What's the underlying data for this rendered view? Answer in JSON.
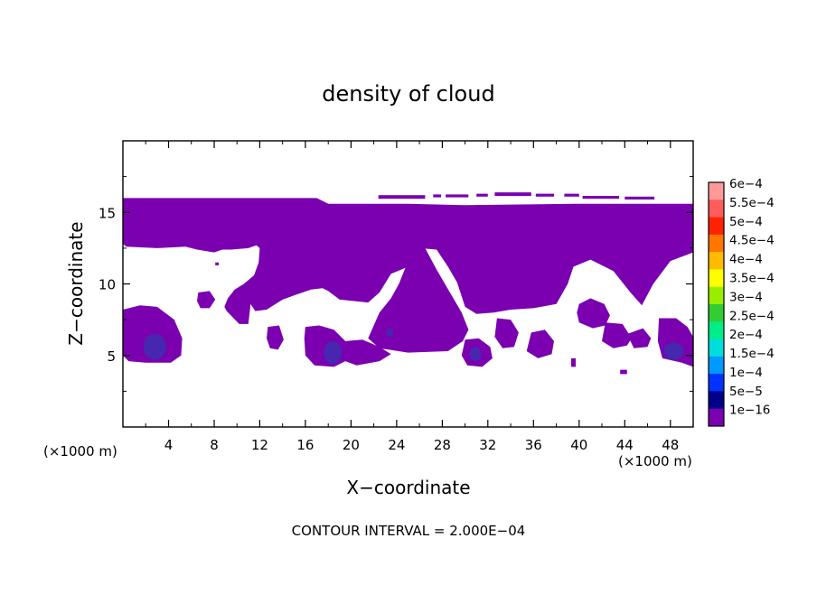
{
  "chart_data": {
    "type": "heatmap",
    "title": "density of cloud",
    "xlabel": "X−coordinate",
    "ylabel": "Z−coordinate",
    "x_unit": "(×1000 m)",
    "x_unit_right": "(×1000 m)",
    "footer": "CONTOUR INTERVAL = 2.000E−04",
    "xlim": [
      0,
      50
    ],
    "ylim": [
      0,
      20
    ],
    "x_ticks": [
      4,
      8,
      12,
      16,
      20,
      24,
      28,
      32,
      36,
      40,
      44,
      48
    ],
    "x_tick_labels": [
      "4",
      "8",
      "12",
      "16",
      "20",
      "24",
      "28",
      "32",
      "36",
      "40",
      "44",
      "48"
    ],
    "y_ticks": [
      5,
      10,
      15
    ],
    "y_tick_labels": [
      "5",
      "10",
      "15"
    ],
    "colorbar": {
      "levels": [
        "6e−4",
        "5.5e−4",
        "5e−4",
        "4.5e−4",
        "4e−4",
        "3.5e−4",
        "3e−4",
        "2.5e−4",
        "2e−4",
        "1.5e−4",
        "1e−4",
        "5e−5",
        "1e−16"
      ],
      "colors": [
        "#ff9999",
        "#ff5c5c",
        "#ff2200",
        "#ff7700",
        "#ffbb00",
        "#ffff00",
        "#99ee00",
        "#33cc33",
        "#00ee88",
        "#00dddd",
        "#0099ff",
        "#0033ff",
        "#000088",
        "#7a00b0"
      ]
    },
    "fill_color": "#7a00b0",
    "core_color": "#3b2fb0",
    "cloud_regions": [
      {
        "name": "upper-cloud-layer",
        "points": [
          [
            0,
            16
          ],
          [
            17,
            16
          ],
          [
            18,
            15.6
          ],
          [
            25,
            15.6
          ],
          [
            30,
            15.5
          ],
          [
            40,
            15.6
          ],
          [
            50,
            15.6
          ],
          [
            50,
            12.2
          ],
          [
            48,
            11.6
          ],
          [
            46.5,
            10
          ],
          [
            45.5,
            8.5
          ],
          [
            44.5,
            9.4
          ],
          [
            43,
            10.9
          ],
          [
            41,
            11.7
          ],
          [
            39.5,
            11.2
          ],
          [
            39,
            10
          ],
          [
            38,
            8.6
          ],
          [
            36,
            8.3
          ],
          [
            34,
            8.2
          ],
          [
            32.5,
            8
          ],
          [
            31,
            7.9
          ],
          [
            30,
            8.4
          ],
          [
            29.3,
            10.1
          ],
          [
            28.5,
            11.2
          ],
          [
            27.5,
            12.4
          ],
          [
            26,
            12.5
          ],
          [
            25,
            11.2
          ],
          [
            23.5,
            10.7
          ],
          [
            22.5,
            9.4
          ],
          [
            21.5,
            8.7
          ],
          [
            19,
            8.9
          ],
          [
            18,
            9.5
          ],
          [
            17.5,
            9.7
          ],
          [
            16.5,
            9.6
          ],
          [
            15,
            9.2
          ],
          [
            14,
            8.9
          ],
          [
            12.6,
            8.2
          ],
          [
            11.6,
            8.1
          ],
          [
            11.2,
            8.6
          ],
          [
            11,
            7.2
          ],
          [
            10.2,
            7.2
          ],
          [
            9.1,
            8.1
          ],
          [
            8.9,
            8.4
          ],
          [
            9.2,
            9
          ],
          [
            9.8,
            9.6
          ],
          [
            10.6,
            10
          ],
          [
            11.5,
            10.6
          ],
          [
            11.9,
            11.5
          ],
          [
            12,
            12.5
          ],
          [
            11.7,
            12.7
          ],
          [
            11,
            12.5
          ],
          [
            9.5,
            12.4
          ],
          [
            8.7,
            12.4
          ],
          [
            8,
            12.2
          ],
          [
            6.5,
            12.4
          ],
          [
            5.5,
            12.6
          ],
          [
            3,
            12.5
          ],
          [
            0.3,
            12.6
          ],
          [
            0,
            12.8
          ]
        ]
      },
      {
        "name": "central-column",
        "points": [
          [
            25,
            12.5
          ],
          [
            26.5,
            12.5
          ],
          [
            27.5,
            11
          ],
          [
            28.6,
            9.5
          ],
          [
            29.7,
            8
          ],
          [
            30.3,
            6.8
          ],
          [
            29.8,
            6
          ],
          [
            28.5,
            5.3
          ],
          [
            25,
            5.2
          ],
          [
            22.5,
            5.5
          ],
          [
            21.5,
            6.2
          ],
          [
            22.5,
            8
          ],
          [
            23.5,
            9
          ],
          [
            24.2,
            10
          ],
          [
            24.8,
            11.2
          ]
        ]
      },
      {
        "name": "cloud-patch-near-x3",
        "points": [
          [
            0,
            8.2
          ],
          [
            1.5,
            8.5
          ],
          [
            3,
            8.4
          ],
          [
            4.5,
            7.5
          ],
          [
            5.2,
            6.2
          ],
          [
            5.1,
            5
          ],
          [
            4.2,
            4.5
          ],
          [
            2,
            4.5
          ],
          [
            0.5,
            4.6
          ],
          [
            0,
            5
          ]
        ]
      },
      {
        "name": "cloud-patch-near-x18",
        "points": [
          [
            16,
            7
          ],
          [
            17.2,
            7.1
          ],
          [
            18.5,
            6.8
          ],
          [
            19.5,
            6
          ],
          [
            19.6,
            5.2
          ],
          [
            19.5,
            4.6
          ],
          [
            18.5,
            4.2
          ],
          [
            16.8,
            4.3
          ],
          [
            16,
            5
          ],
          [
            15.9,
            6.2
          ]
        ]
      },
      {
        "name": "cloud-patch-near-x20",
        "points": [
          [
            19.5,
            6
          ],
          [
            21,
            6.1
          ],
          [
            22.5,
            5.6
          ],
          [
            23.5,
            5.1
          ],
          [
            22.5,
            4.6
          ],
          [
            20.5,
            4.3
          ],
          [
            19.5,
            4.6
          ]
        ]
      },
      {
        "name": "cloud-patch-near-x31",
        "points": [
          [
            30,
            6.1
          ],
          [
            31.2,
            6.2
          ],
          [
            32.2,
            5.6
          ],
          [
            32.4,
            4.8
          ],
          [
            31.5,
            4.2
          ],
          [
            30.2,
            4.3
          ],
          [
            29.7,
            5
          ]
        ]
      },
      {
        "name": "cloud-patch-near-x33",
        "points": [
          [
            32.8,
            7.6
          ],
          [
            34,
            7.5
          ],
          [
            34.7,
            6.6
          ],
          [
            34.3,
            5.6
          ],
          [
            33.3,
            5.5
          ],
          [
            32.6,
            6.3
          ]
        ]
      },
      {
        "name": "cloud-patch-near-x36",
        "points": [
          [
            35.8,
            6.6
          ],
          [
            37,
            6.8
          ],
          [
            37.8,
            6
          ],
          [
            37.6,
            5.1
          ],
          [
            36.4,
            4.8
          ],
          [
            35.4,
            5.3
          ]
        ]
      },
      {
        "name": "cloud-patch-near-x40",
        "points": [
          [
            40,
            8.6
          ],
          [
            41,
            9
          ],
          [
            42.2,
            8.6
          ],
          [
            42.7,
            7.8
          ],
          [
            42.3,
            7.1
          ],
          [
            41.2,
            6.9
          ],
          [
            40,
            7.3
          ],
          [
            39.8,
            8
          ]
        ]
      },
      {
        "name": "cloud-patch-near-x44",
        "points": [
          [
            42.3,
            7.3
          ],
          [
            43.8,
            7.2
          ],
          [
            44.6,
            6.2
          ],
          [
            44.2,
            5.7
          ],
          [
            43,
            5.5
          ],
          [
            42,
            6
          ]
        ]
      },
      {
        "name": "cloud-patch-near-x46",
        "points": [
          [
            44.2,
            6.5
          ],
          [
            45.6,
            6.9
          ],
          [
            46.3,
            6.2
          ],
          [
            46,
            5.6
          ],
          [
            44.8,
            5.5
          ]
        ]
      },
      {
        "name": "cloud-patch-near-x48",
        "points": [
          [
            47,
            7.6
          ],
          [
            48.5,
            7.6
          ],
          [
            49.5,
            7
          ],
          [
            50,
            6.3
          ],
          [
            50,
            4.2
          ],
          [
            49,
            4.5
          ],
          [
            47.3,
            4.8
          ],
          [
            46.9,
            6
          ]
        ]
      },
      {
        "name": "cloud-patch-near-x8",
        "points": [
          [
            6.6,
            9.4
          ],
          [
            7.6,
            9.5
          ],
          [
            8.1,
            8.9
          ],
          [
            7.6,
            8.3
          ],
          [
            6.8,
            8.3
          ],
          [
            6.5,
            8.8
          ]
        ]
      },
      {
        "name": "cloud-patch-near-x13",
        "points": [
          [
            12.7,
            7
          ],
          [
            13.7,
            7.1
          ],
          [
            14.1,
            6.1
          ],
          [
            13.6,
            5.4
          ],
          [
            12.9,
            5.5
          ],
          [
            12.6,
            6.2
          ]
        ]
      }
    ],
    "cloud_specks": [
      {
        "x": 22.4,
        "y": 15.95,
        "w": 4.1,
        "h": 0.25
      },
      {
        "x": 27.2,
        "y": 16.05,
        "w": 0.7,
        "h": 0.2
      },
      {
        "x": 28.3,
        "y": 16.05,
        "w": 2.0,
        "h": 0.2
      },
      {
        "x": 31.0,
        "y": 16.1,
        "w": 1.0,
        "h": 0.2
      },
      {
        "x": 32.6,
        "y": 16.15,
        "w": 3.2,
        "h": 0.25
      },
      {
        "x": 36.2,
        "y": 16.1,
        "w": 1.6,
        "h": 0.2
      },
      {
        "x": 38.7,
        "y": 16.1,
        "w": 1.3,
        "h": 0.2
      },
      {
        "x": 40.3,
        "y": 15.95,
        "w": 3.2,
        "h": 0.2
      },
      {
        "x": 44.0,
        "y": 15.9,
        "w": 2.6,
        "h": 0.2
      },
      {
        "x": 39.3,
        "y": 4.2,
        "w": 0.4,
        "h": 0.6
      },
      {
        "x": 43.6,
        "y": 3.7,
        "w": 0.6,
        "h": 0.3
      },
      {
        "x": 8.1,
        "y": 11.3,
        "w": 0.3,
        "h": 0.2
      }
    ],
    "density_cores": [
      {
        "x": 2.8,
        "y": 5.6,
        "rx": 1.0,
        "ry": 0.9
      },
      {
        "x": 18.4,
        "y": 5.2,
        "rx": 0.8,
        "ry": 0.8
      },
      {
        "x": 23.4,
        "y": 6.6,
        "rx": 0.3,
        "ry": 0.3
      },
      {
        "x": 30.9,
        "y": 5.1,
        "rx": 0.5,
        "ry": 0.5
      },
      {
        "x": 48.3,
        "y": 5.3,
        "rx": 0.9,
        "ry": 0.6
      }
    ]
  }
}
